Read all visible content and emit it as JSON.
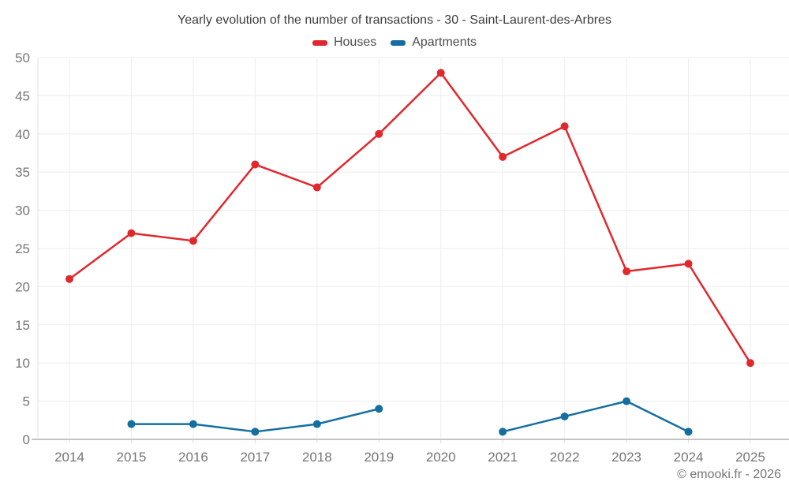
{
  "page": {
    "footer": "© emooki.fr - 2026"
  },
  "colors": {
    "houses": "#e1282d",
    "apartments": "#146fa1",
    "grid": "#ededed",
    "axis_line": "#c4c4c4",
    "axis_tick": "#dcdcdc",
    "y_axis_line": "#e3e3e3",
    "tick_text": "#757575",
    "title_text": "#3d3d3d",
    "footer_text": "#757575"
  },
  "chart_data": {
    "type": "line",
    "title": "Yearly evolution of the number of transactions - 30 - Saint-Laurent-des-Arbres",
    "categories": [
      "2014",
      "2015",
      "2016",
      "2017",
      "2018",
      "2019",
      "2020",
      "2021",
      "2022",
      "2023",
      "2024",
      "2025"
    ],
    "series": [
      {
        "name": "Houses",
        "color": "#e1282d",
        "values": [
          21,
          27,
          26,
          36,
          33,
          40,
          48,
          37,
          41,
          22,
          23,
          10
        ]
      },
      {
        "name": "Apartments",
        "color": "#146fa1",
        "values": [
          null,
          2,
          2,
          1,
          2,
          4,
          null,
          1,
          3,
          5,
          1,
          null
        ]
      }
    ],
    "xlabel": "",
    "ylabel": "",
    "ylim": [
      0,
      50
    ],
    "ytick_step": 5,
    "y_ticks": [
      0,
      5,
      10,
      15,
      20,
      25,
      30,
      35,
      40,
      45,
      50
    ],
    "grid": true,
    "legend_position": "top",
    "marker": "circle",
    "notes": "Apartments series has gaps (no data) at 2014, 2020 and 2025"
  }
}
